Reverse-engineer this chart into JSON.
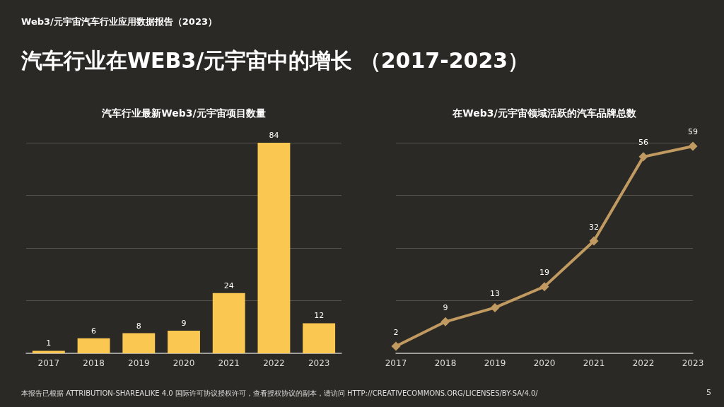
{
  "chart_data": [
    {
      "type": "other",
      "title": "汽车行业在WEB3/元宇宙中的增长 （2017-2023）",
      "subtitle": "Web3/元宇宙汽车行业应用数据报告（2023）",
      "annotations": [
        "本报告已根据 ATTRIBUTION-SHAREALIKE 4.0 国际许可协议授权许可，查看授权协议的副本，请访问 HTTP://CREATIVECOMMONS.ORG/LICENSES/BY-SA/4.0/",
        "5"
      ]
    },
    {
      "type": "bar",
      "title": "汽车行业最新Web3/元宇宙项目数量",
      "categories": [
        "2017",
        "2018",
        "2019",
        "2020",
        "2021",
        "2022",
        "2023"
      ],
      "series": [
        {
          "color": "#fac850",
          "values": [
            1,
            6,
            8,
            9,
            24,
            84,
            12
          ]
        }
      ],
      "ylim": [
        0,
        84
      ],
      "yticks": [
        {
          "value": 0,
          "label": null
        },
        {
          "value": 21,
          "label": null
        },
        {
          "value": 42,
          "label": null
        },
        {
          "value": 63,
          "label": null
        },
        {
          "value": 84,
          "label": null
        }
      ],
      "tick_labels": "x",
      "grid": "y",
      "data_labels": true
    },
    {
      "type": "line",
      "title": "在Web3/元宇宙领域活跃的汽车品牌总数",
      "categories": [
        "2017",
        "2018",
        "2019",
        "2020",
        "2021",
        "2022",
        "2023"
      ],
      "series": [
        {
          "color": "#c09a60",
          "values": [
            2,
            9,
            13,
            19,
            32,
            56,
            59
          ]
        }
      ],
      "ylim": [
        0,
        60
      ],
      "yticks": [
        {
          "value": 0,
          "label": null
        },
        {
          "value": 15,
          "label": null
        },
        {
          "value": 30,
          "label": null
        },
        {
          "value": 45,
          "label": null
        },
        {
          "value": 60,
          "label": null
        }
      ],
      "tick_labels": "x",
      "grid": "y",
      "data_labels": true,
      "marker": "diamond",
      "line_style": "solid"
    }
  ]
}
